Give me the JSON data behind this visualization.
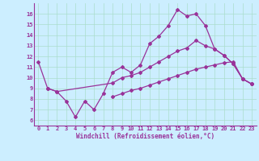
{
  "xlabel": "Windchill (Refroidissement éolien,°C)",
  "background_color": "#cceeff",
  "line_color": "#993399",
  "xlim": [
    -0.5,
    23.5
  ],
  "ylim": [
    5.5,
    17.0
  ],
  "xticks": [
    0,
    1,
    2,
    3,
    4,
    5,
    6,
    7,
    8,
    9,
    10,
    11,
    12,
    13,
    14,
    15,
    16,
    17,
    18,
    19,
    20,
    21,
    22,
    23
  ],
  "yticks": [
    6,
    7,
    8,
    9,
    10,
    11,
    12,
    13,
    14,
    15,
    16
  ],
  "series1_x": [
    0,
    1,
    2,
    3,
    4,
    5,
    6,
    7,
    8,
    9,
    10,
    11,
    12,
    13,
    14,
    15,
    16,
    17,
    18,
    19,
    20,
    21,
    22,
    23
  ],
  "series1_y": [
    11.5,
    9.0,
    8.7,
    7.8,
    6.3,
    7.8,
    7.0,
    8.5,
    10.5,
    11.0,
    10.5,
    11.2,
    13.2,
    13.9,
    14.9,
    16.4,
    15.8,
    16.0,
    14.9,
    12.7,
    12.1,
    11.3,
    9.9,
    9.4
  ],
  "series2_x": [
    1,
    2,
    8,
    9,
    10,
    11,
    12,
    13,
    14,
    15,
    16,
    17,
    18,
    19,
    20,
    21,
    22,
    23
  ],
  "series2_y": [
    9.0,
    8.7,
    9.5,
    10.0,
    10.2,
    10.5,
    11.0,
    11.5,
    12.0,
    12.5,
    12.8,
    13.5,
    13.0,
    12.7,
    12.1,
    11.3,
    9.9,
    9.4
  ],
  "series3_x": [
    8,
    9,
    10,
    11,
    12,
    13,
    14,
    15,
    16,
    17,
    18,
    19,
    20,
    21,
    22,
    23
  ],
  "series3_y": [
    8.2,
    8.5,
    8.8,
    9.0,
    9.3,
    9.6,
    9.9,
    10.2,
    10.5,
    10.8,
    11.0,
    11.2,
    11.4,
    11.5,
    9.9,
    9.4
  ],
  "grid_color": "#aaddcc",
  "marker": "D",
  "markersize": 2.0,
  "linewidth": 0.9,
  "tick_fontsize": 5.0,
  "xlabel_fontsize": 5.5
}
